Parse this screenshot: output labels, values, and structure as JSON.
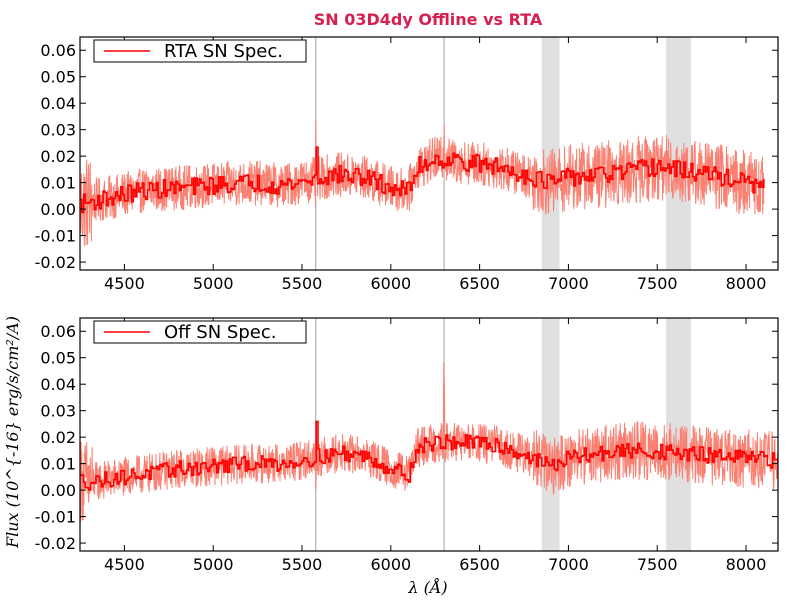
{
  "figure": {
    "title": "SN 03D4dy Offline vs RTA",
    "ylabel": "Flux (10^{-16} erg/s/cm²/A)",
    "xlabel": "λ (Å)",
    "title_color": "#d6204f"
  },
  "chart_data": [
    {
      "type": "line",
      "legend": "RTA SN Spec.",
      "xlim": [
        4250,
        8180
      ],
      "ylim": [
        -0.023,
        0.065
      ],
      "xticks": [
        4500,
        5000,
        5500,
        6000,
        6500,
        7000,
        7500,
        8000
      ],
      "yticks": [
        -0.02,
        -0.01,
        0.0,
        0.01,
        0.02,
        0.03,
        0.04,
        0.05,
        0.06
      ],
      "ytick_labels": [
        "-0.02",
        "-0.01",
        "0.00",
        "0.01",
        "0.02",
        "0.03",
        "0.04",
        "0.05",
        "0.06"
      ],
      "x_end": 8100,
      "vlines": [
        5577,
        6300
      ],
      "shaded_bands": [
        [
          6850,
          6950
        ],
        [
          7550,
          7690
        ]
      ],
      "series": [
        {
          "role": "raw",
          "color": "#fa8072",
          "noise": 0.0085,
          "x": [
            4250,
            4400,
            4600,
            4800,
            5000,
            5200,
            5400,
            5550,
            5700,
            5850,
            6000,
            6100,
            6150,
            6250,
            6400,
            6600,
            6800,
            6900,
            7000,
            7200,
            7400,
            7500,
            7600,
            7800,
            8000,
            8100
          ],
          "y": [
            0.002,
            0.004,
            0.007,
            0.008,
            0.009,
            0.01,
            0.009,
            0.011,
            0.013,
            0.012,
            0.008,
            0.007,
            0.016,
            0.019,
            0.018,
            0.016,
            0.012,
            0.01,
            0.012,
            0.013,
            0.015,
            0.016,
            0.015,
            0.013,
            0.01,
            0.008
          ]
        },
        {
          "role": "binned",
          "color": "#ff0000",
          "noise": 0.0035,
          "x": [
            4250,
            4400,
            4600,
            4800,
            5000,
            5200,
            5400,
            5550,
            5700,
            5850,
            6000,
            6100,
            6150,
            6250,
            6400,
            6600,
            6800,
            6900,
            7000,
            7200,
            7400,
            7500,
            7600,
            7800,
            8000,
            8100
          ],
          "y": [
            0.002,
            0.004,
            0.007,
            0.008,
            0.009,
            0.01,
            0.009,
            0.011,
            0.013,
            0.012,
            0.008,
            0.007,
            0.016,
            0.019,
            0.018,
            0.016,
            0.012,
            0.01,
            0.012,
            0.013,
            0.015,
            0.016,
            0.015,
            0.013,
            0.01,
            0.008
          ]
        }
      ]
    },
    {
      "type": "line",
      "legend": "Off SN Spec.",
      "xlim": [
        4250,
        8180
      ],
      "ylim": [
        -0.023,
        0.065
      ],
      "xticks": [
        4500,
        5000,
        5500,
        6000,
        6500,
        7000,
        7500,
        8000
      ],
      "yticks": [
        -0.02,
        -0.01,
        0.0,
        0.01,
        0.02,
        0.03,
        0.04,
        0.05,
        0.06
      ],
      "ytick_labels": [
        "-0.02",
        "-0.01",
        "0.00",
        "0.01",
        "0.02",
        "0.03",
        "0.04",
        "0.05",
        "0.06"
      ],
      "x_end": 8180,
      "vlines": [
        5577,
        6300
      ],
      "shaded_bands": [
        [
          6850,
          6950
        ],
        [
          7550,
          7690
        ]
      ],
      "series": [
        {
          "role": "raw",
          "color": "#fa8072",
          "noise": 0.0075,
          "x": [
            4250,
            4300,
            4400,
            4600,
            4800,
            5000,
            5200,
            5400,
            5550,
            5700,
            5850,
            6000,
            6100,
            6150,
            6250,
            6400,
            6600,
            6800,
            6900,
            7000,
            7200,
            7400,
            7600,
            7800,
            8000,
            8180
          ],
          "y": [
            0.004,
            0.003,
            0.004,
            0.006,
            0.008,
            0.009,
            0.01,
            0.01,
            0.012,
            0.014,
            0.013,
            0.008,
            0.006,
            0.016,
            0.018,
            0.018,
            0.017,
            0.012,
            0.009,
            0.012,
            0.014,
            0.015,
            0.014,
            0.013,
            0.012,
            0.011
          ]
        },
        {
          "role": "binned",
          "color": "#ff0000",
          "noise": 0.003,
          "x": [
            4250,
            4300,
            4400,
            4600,
            4800,
            5000,
            5200,
            5400,
            5550,
            5700,
            5850,
            6000,
            6100,
            6150,
            6250,
            6400,
            6600,
            6800,
            6900,
            7000,
            7200,
            7400,
            7600,
            7800,
            8000,
            8180
          ],
          "y": [
            0.004,
            0.003,
            0.004,
            0.006,
            0.008,
            0.009,
            0.01,
            0.01,
            0.012,
            0.014,
            0.013,
            0.008,
            0.006,
            0.016,
            0.018,
            0.018,
            0.017,
            0.012,
            0.009,
            0.012,
            0.014,
            0.015,
            0.014,
            0.013,
            0.012,
            0.011
          ]
        }
      ]
    }
  ]
}
